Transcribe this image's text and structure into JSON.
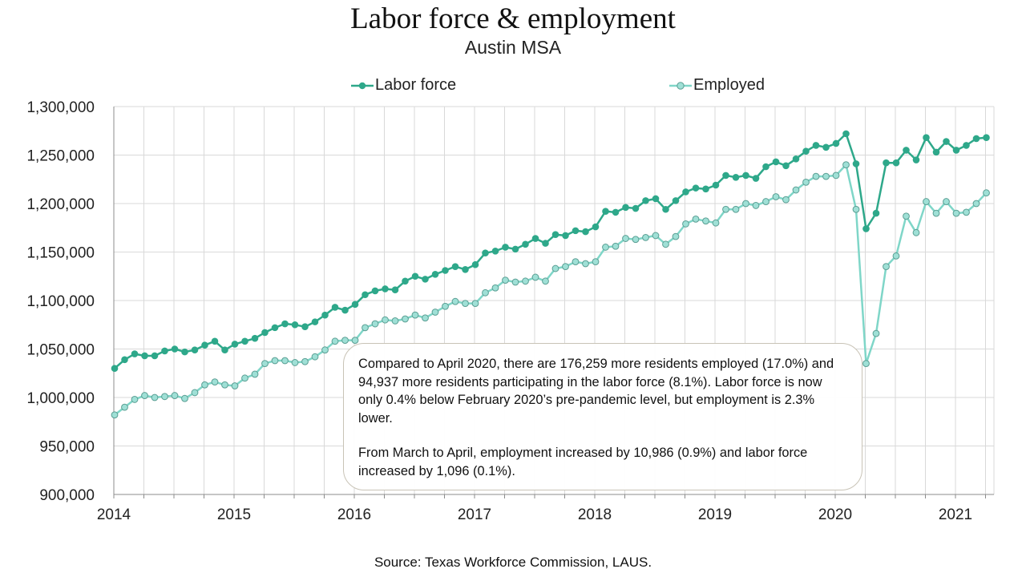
{
  "title": "Labor force & employment",
  "subtitle": "Austin MSA",
  "source": "Source: Texas Workforce Commission, LAUS.",
  "annotation": {
    "paragraph_1": "Compared to April 2020, there are 176,259 more residents employed (17.0%) and 94,937 more residents participating in the labor force (8.1%). Labor force is now only 0.4% below February 2020’s pre-pandemic level, but employment is 2.3% lower.",
    "paragraph_2": "From March to April, employment increased by 10,986 (0.9%) and labor force increased by 1,096 (0.1%)."
  },
  "colors": {
    "labor_force": "#2ea88a",
    "employed": "#7fd6c8",
    "employed_marker_fill": "#9fe0d6",
    "grid": "#d9d9d9"
  },
  "chart_data": {
    "type": "line",
    "legend_position": "top",
    "grid": true,
    "ylim": [
      900000,
      1300000
    ],
    "y_ticks": [
      900000,
      950000,
      1000000,
      1050000,
      1100000,
      1150000,
      1200000,
      1250000,
      1300000
    ],
    "y_tick_labels": [
      "900,000",
      "950,000",
      "1,000,000",
      "1,050,000",
      "1,100,000",
      "1,150,000",
      "1,200,000",
      "1,250,000",
      "1,300,000"
    ],
    "x_tick_labels": [
      "2014",
      "2015",
      "2016",
      "2017",
      "2018",
      "2019",
      "2020",
      "2021"
    ],
    "x_start": "Jan 2014",
    "x_end": "Apr 2021",
    "frequency": "monthly",
    "series": [
      {
        "name": "Labor force",
        "values": [
          1030000,
          1039000,
          1045000,
          1043000,
          1043000,
          1048000,
          1050000,
          1047000,
          1049000,
          1054000,
          1058000,
          1049000,
          1055000,
          1058000,
          1061000,
          1067000,
          1072000,
          1076000,
          1075000,
          1073000,
          1078000,
          1085000,
          1093000,
          1090000,
          1096000,
          1106000,
          1110000,
          1112000,
          1111000,
          1120000,
          1125000,
          1122000,
          1127000,
          1131000,
          1135000,
          1132000,
          1137000,
          1149000,
          1151000,
          1155000,
          1153000,
          1158000,
          1164000,
          1159000,
          1168000,
          1167000,
          1172000,
          1171000,
          1176000,
          1192000,
          1191000,
          1196000,
          1195000,
          1203000,
          1205000,
          1194000,
          1203000,
          1212000,
          1216000,
          1215000,
          1219000,
          1229000,
          1227000,
          1229000,
          1226000,
          1238000,
          1243000,
          1239000,
          1246000,
          1254000,
          1260000,
          1258000,
          1262000,
          1272000,
          1241000,
          1174000,
          1190000,
          1242000,
          1242000,
          1255000,
          1245000,
          1268000,
          1253000,
          1264000,
          1255000,
          1260000,
          1267000,
          1268000
        ]
      },
      {
        "name": "Employed",
        "values": [
          982000,
          990000,
          998000,
          1002000,
          1000000,
          1001000,
          1002000,
          999000,
          1005000,
          1013000,
          1016000,
          1013000,
          1012000,
          1020000,
          1024000,
          1035000,
          1038000,
          1038000,
          1036000,
          1037000,
          1042000,
          1049000,
          1058000,
          1059000,
          1059000,
          1072000,
          1076000,
          1080000,
          1079000,
          1081000,
          1085000,
          1082000,
          1088000,
          1094000,
          1099000,
          1097000,
          1097000,
          1108000,
          1113000,
          1121000,
          1119000,
          1120000,
          1124000,
          1120000,
          1133000,
          1135000,
          1140000,
          1138000,
          1140000,
          1155000,
          1156000,
          1164000,
          1163000,
          1165000,
          1167000,
          1158000,
          1166000,
          1179000,
          1184000,
          1182000,
          1180000,
          1194000,
          1194000,
          1200000,
          1198000,
          1202000,
          1207000,
          1204000,
          1214000,
          1222000,
          1228000,
          1228000,
          1229000,
          1240000,
          1194000,
          1035000,
          1066000,
          1135000,
          1146000,
          1187000,
          1170000,
          1202000,
          1190000,
          1202000,
          1190000,
          1191000,
          1200000,
          1211000
        ]
      }
    ]
  }
}
